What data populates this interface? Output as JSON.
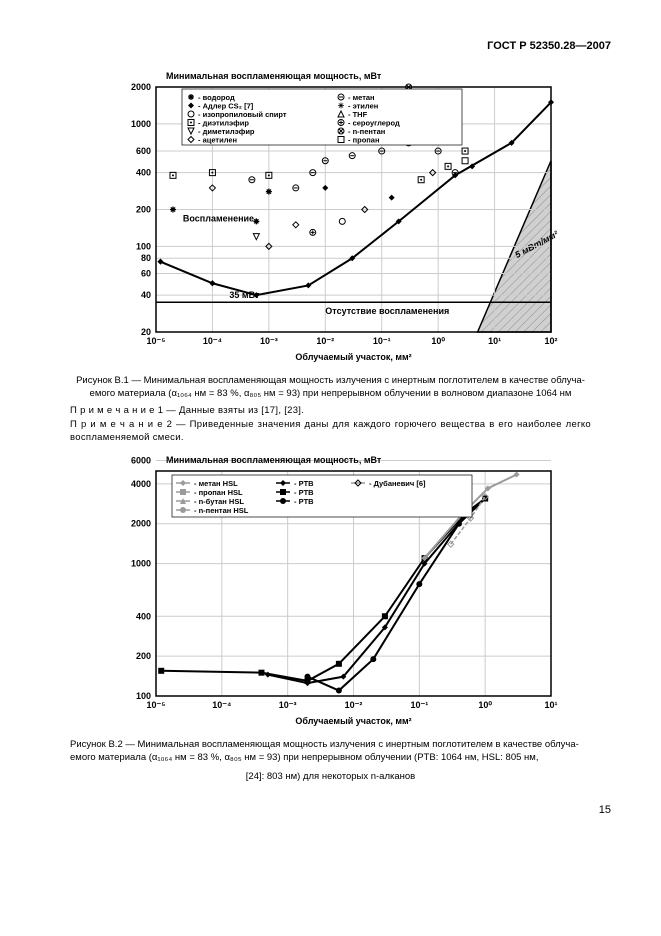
{
  "header": {
    "doc_id": "ГОСТ Р 52350.28—2007"
  },
  "chart1": {
    "type": "scatter-loglog",
    "title": "Минимальная воспламеняющая мощность, мВт",
    "xlabel": "Облучаемый участок, мм²",
    "xlim": [
      1e-05,
      100.0
    ],
    "ylim": [
      20,
      2000
    ],
    "xticks": [
      1e-05,
      0.0001,
      0.001,
      0.01,
      0.1,
      1,
      10,
      100
    ],
    "yticks": [
      20,
      40,
      60,
      80,
      100,
      200,
      400,
      600,
      1000,
      2000
    ],
    "grid_color": "#cccccc",
    "background_color": "#ffffff",
    "line_label_35": "35 мВт",
    "region_label_ignite": "Воспламенение",
    "region_label_no": "Отсутствие воспламенения",
    "hatched_label": "5 мВт/мм²",
    "hatched_fill": "#d0d0d0",
    "legend": [
      {
        "marker": "asterisk-bold",
        "label": "водород"
      },
      {
        "marker": "diamond-bold",
        "label": "Адлер CS₂ [7]"
      },
      {
        "marker": "circle-open",
        "label": "изопропиловый спирт"
      },
      {
        "marker": "square-dot",
        "label": "диэтилэфир"
      },
      {
        "marker": "triangle-down-open",
        "label": "диметилэфир"
      },
      {
        "marker": "diamond-open",
        "label": "ацетилен"
      },
      {
        "marker": "circle-dash",
        "label": "метан"
      },
      {
        "marker": "asterisk-thin",
        "label": "этилен"
      },
      {
        "marker": "triangle-up-open",
        "label": "THF"
      },
      {
        "marker": "circle-plus",
        "label": "сероуглерод"
      },
      {
        "marker": "circle-cross",
        "label": "n-пентан"
      },
      {
        "marker": "square-open",
        "label": "пропан"
      }
    ],
    "boundary_line": {
      "points": [
        [
          1.2e-05,
          75
        ],
        [
          0.0001,
          50
        ],
        [
          0.0006,
          40
        ],
        [
          0.005,
          48
        ],
        [
          0.03,
          80
        ],
        [
          0.2,
          160
        ],
        [
          2,
          380
        ],
        [
          20,
          700
        ],
        [
          100,
          1500
        ]
      ],
      "color": "#000000",
      "width": 2
    },
    "data_estimated": [
      {
        "x": 2e-05,
        "y": 200,
        "m": "asterisk-bold"
      },
      {
        "x": 2e-05,
        "y": 380,
        "m": "square-dot"
      },
      {
        "x": 1.2e-05,
        "y": 75,
        "m": "diamond-bold"
      },
      {
        "x": 0.0001,
        "y": 400,
        "m": "square-dot"
      },
      {
        "x": 0.0001,
        "y": 300,
        "m": "diamond-open"
      },
      {
        "x": 0.0001,
        "y": 50,
        "m": "diamond-bold"
      },
      {
        "x": 0.0005,
        "y": 350,
        "m": "circle-dash"
      },
      {
        "x": 0.0006,
        "y": 160,
        "m": "asterisk-bold"
      },
      {
        "x": 0.0006,
        "y": 120,
        "m": "triangle-down-open"
      },
      {
        "x": 0.001,
        "y": 380,
        "m": "square-dot"
      },
      {
        "x": 0.001,
        "y": 280,
        "m": "asterisk-bold"
      },
      {
        "x": 0.001,
        "y": 100,
        "m": "diamond-open"
      },
      {
        "x": 0.003,
        "y": 300,
        "m": "circle-dash"
      },
      {
        "x": 0.003,
        "y": 150,
        "m": "diamond-open"
      },
      {
        "x": 0.006,
        "y": 400,
        "m": "circle-dash"
      },
      {
        "x": 0.006,
        "y": 130,
        "m": "circle-plus"
      },
      {
        "x": 0.01,
        "y": 500,
        "m": "circle-dash"
      },
      {
        "x": 0.01,
        "y": 300,
        "m": "diamond-bold"
      },
      {
        "x": 0.02,
        "y": 160,
        "m": "circle-open"
      },
      {
        "x": 0.03,
        "y": 550,
        "m": "circle-dash"
      },
      {
        "x": 0.05,
        "y": 200,
        "m": "diamond-open"
      },
      {
        "x": 0.1,
        "y": 600,
        "m": "circle-dash"
      },
      {
        "x": 0.1,
        "y": 800,
        "m": "circle-open"
      },
      {
        "x": 0.15,
        "y": 250,
        "m": "diamond-bold"
      },
      {
        "x": 0.3,
        "y": 700,
        "m": "circle-dash"
      },
      {
        "x": 0.3,
        "y": 2000,
        "m": "circle-cross"
      },
      {
        "x": 0.5,
        "y": 350,
        "m": "square-dot"
      },
      {
        "x": 0.8,
        "y": 400,
        "m": "diamond-open"
      },
      {
        "x": 1,
        "y": 600,
        "m": "circle-dash"
      },
      {
        "x": 1.5,
        "y": 450,
        "m": "square-dot"
      },
      {
        "x": 2,
        "y": 400,
        "m": "circle-dash"
      },
      {
        "x": 3,
        "y": 500,
        "m": "square-open"
      },
      {
        "x": 3,
        "y": 600,
        "m": "square-dot"
      },
      {
        "x": 4,
        "y": 450,
        "m": "diamond-bold"
      }
    ]
  },
  "caption1_a": "Рисунок В.1 — Минимальная воспламеняющая мощность излучения с инертным поглотителем в качестве облуча-",
  "caption1_b": "емого материала (α₁₀₆₄ нм = 83 %, α₈₀₅ нм = 93) при непрерывном облучении в волновом диапазоне 1064 нм",
  "note1": "П р и м е ч а н и е  1 — Данные взяты из [17],  [23].",
  "note2": "П р и м е ч а н и е  2 — Приведенные значения даны  для каждого горючего вещества в его наиболее легко воспламеняемой смеси.",
  "chart2": {
    "type": "line-loglog",
    "title": "Минимальная воспламеняющая мощность, мВт",
    "xlabel": "Облучаемый участок, мм²",
    "xlim": [
      1e-05,
      10.0
    ],
    "ylim": [
      100,
      5000
    ],
    "xticks": [
      1e-05,
      0.0001,
      0.001,
      0.01,
      0.1,
      1,
      10
    ],
    "yticks": [
      100,
      200,
      400,
      1000,
      2000,
      4000,
      6000
    ],
    "grid_color": "#cccccc",
    "legend": [
      {
        "marker": "diamond-gray",
        "label": "метан HSL"
      },
      {
        "marker": "square-gray",
        "label": "пропан HSL"
      },
      {
        "marker": "triangle-gray",
        "label": "n-бутан HSL"
      },
      {
        "marker": "circle-gray",
        "label": "n-пентан HSL"
      },
      {
        "marker": "diamond-black",
        "label": "PTB"
      },
      {
        "marker": "square-black",
        "label": "PTB"
      },
      {
        "marker": "circle-black",
        "label": "PTB"
      },
      {
        "marker": "diamond-open",
        "label": "Дубаневич [6]"
      }
    ],
    "series": [
      {
        "name": "PTB-sq",
        "color": "#000000",
        "width": 2,
        "points": [
          [
            1.2e-05,
            155
          ],
          [
            0.0004,
            150
          ],
          [
            0.002,
            130
          ],
          [
            0.006,
            175
          ],
          [
            0.03,
            400
          ],
          [
            0.12,
            1100
          ],
          [
            0.5,
            2400
          ],
          [
            1,
            3100
          ]
        ]
      },
      {
        "name": "PTB-di",
        "color": "#000000",
        "width": 2,
        "points": [
          [
            0.0005,
            145
          ],
          [
            0.002,
            125
          ],
          [
            0.007,
            140
          ],
          [
            0.03,
            330
          ],
          [
            0.12,
            1000
          ],
          [
            0.5,
            2300
          ],
          [
            1,
            3100
          ]
        ]
      },
      {
        "name": "PTB-ci",
        "color": "#000000",
        "width": 2,
        "points": [
          [
            0.002,
            140
          ],
          [
            0.006,
            110
          ],
          [
            0.02,
            190
          ],
          [
            0.1,
            700
          ],
          [
            0.4,
            2000
          ],
          [
            1,
            3100
          ]
        ]
      },
      {
        "name": "HSL",
        "color": "#9a9a9a",
        "width": 2,
        "points": [
          [
            0.12,
            1100
          ],
          [
            0.5,
            2500
          ],
          [
            1.1,
            3700
          ],
          [
            3,
            4700
          ]
        ]
      },
      {
        "name": "Dub",
        "color": "#9a9a9a",
        "width": 1.5,
        "dash": "4 2",
        "points": [
          [
            0.3,
            1400
          ],
          [
            0.6,
            2200
          ],
          [
            1,
            3200
          ]
        ]
      }
    ]
  },
  "caption2_a": "Рисунок В.2 — Минимальная воспламеняющая мощность излучения с инертным поглотителем в качестве облуча-",
  "caption2_b": "емого  материала   (α₁₀₆₄ нм = 83 %, α₈₀₅ нм = 93)   при   непрерывном   облучении    (PTB:  1064 нм,    HSL: 805  нм,",
  "caption2_c": "[24]:  803 нм) для некоторых n-алканов",
  "footer": {
    "page": "15"
  }
}
